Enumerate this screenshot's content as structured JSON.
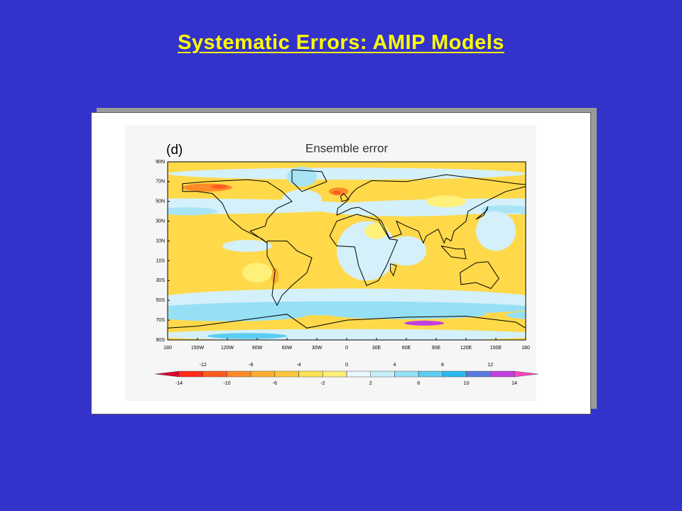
{
  "title": "Systematic Errors: AMIP Models",
  "map": {
    "panel_label": "(d)",
    "title": "Ensemble error",
    "lat_labels": [
      "90N",
      "70N",
      "50N",
      "30N",
      "10N",
      "10S",
      "30S",
      "50S",
      "70S",
      "90S"
    ],
    "lon_labels": [
      "180",
      "150W",
      "120W",
      "90W",
      "60W",
      "30W",
      "0",
      "30E",
      "60E",
      "90E",
      "120E",
      "150E",
      "180"
    ],
    "colorbar": {
      "levels": [
        -14,
        -12,
        -10,
        -8,
        -6,
        -4,
        -2,
        0,
        2,
        4,
        6,
        8,
        10,
        12,
        14
      ],
      "colors": [
        "#e00030",
        "#ff2a1a",
        "#ff5a1e",
        "#ff8a28",
        "#ffae30",
        "#ffc83c",
        "#ffe050",
        "#fff07a",
        "#e8f8ff",
        "#c8eefa",
        "#96e0f6",
        "#5ccdf0",
        "#28b8ec",
        "#5a78e0",
        "#c040e0",
        "#ff40c0"
      ]
    }
  }
}
